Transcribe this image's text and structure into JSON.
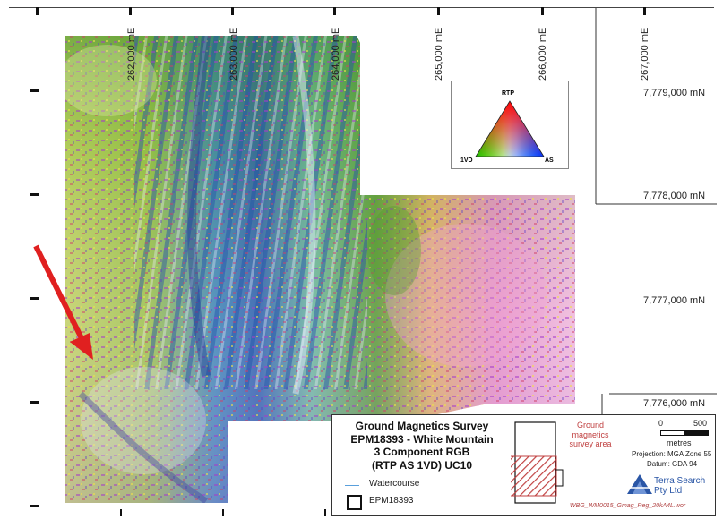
{
  "map": {
    "eastings": [
      "262,000 mE",
      "263,000 mE",
      "264,000 mE",
      "265,000 mE",
      "266,000 mE",
      "267,000 mE"
    ],
    "northings": [
      "7,779,000 mN",
      "7,778,000 mN",
      "7,777,000 mN",
      "7,776,000 mN"
    ],
    "annotation_arrow_color": "#e02020"
  },
  "ternary": {
    "top_label": "RTP",
    "left_label": "1VD",
    "right_label": "AS"
  },
  "legend": {
    "title_lines": [
      "Ground Magnetics Survey",
      "EPM18393 - White Mountain",
      "3 Component RGB",
      "(RTP AS 1VD) UC10"
    ],
    "watercourse_label": "Watercourse",
    "epm_label": "EPM18393",
    "ground_area_label": [
      "Ground",
      "magnetics",
      "survey area"
    ],
    "scale_zero": "0",
    "scale_max": "500",
    "scale_unit": "metres",
    "projection": "Projection: MGA Zone 55",
    "datum": "Datum: GDA 94",
    "company": [
      "Terra Search",
      "Pty Ltd"
    ],
    "reference": "WBG_WM0015_Gmag_Reg_20kA4L.wor"
  },
  "colors": {
    "watercourse": "#5aa0dc",
    "survey_area": "#c04040",
    "company": "#2a56a6",
    "arrow": "#e02020"
  }
}
